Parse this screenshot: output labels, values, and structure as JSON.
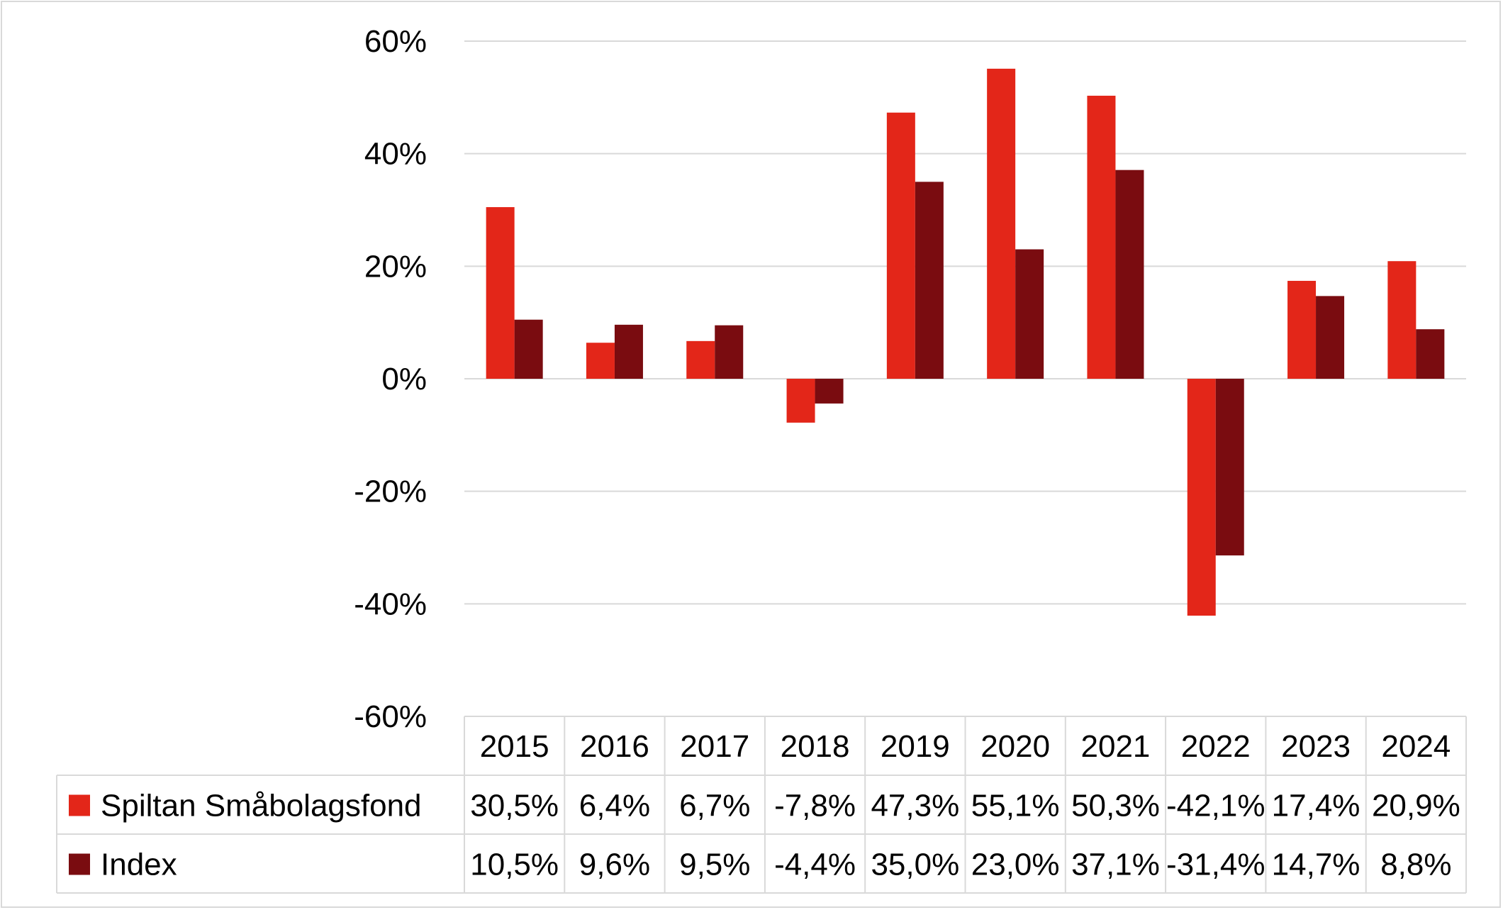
{
  "chart_data": {
    "type": "bar",
    "title": "",
    "xlabel": "",
    "ylabel": "",
    "categories": [
      "2015",
      "2016",
      "2017",
      "2018",
      "2019",
      "2020",
      "2021",
      "2022",
      "2023",
      "2024"
    ],
    "series": [
      {
        "name": "Spiltan Småbolagsfond",
        "color": "#e32619",
        "values": [
          30.5,
          6.4,
          6.7,
          -7.8,
          47.3,
          55.1,
          50.3,
          -42.1,
          17.4,
          20.9
        ],
        "labels": [
          "30,5%",
          "6,4%",
          "6,7%",
          "-7,8%",
          "47,3%",
          "55,1%",
          "50,3%",
          "-42,1%",
          "17,4%",
          "20,9%"
        ]
      },
      {
        "name": "Index",
        "color": "#7a0c10",
        "values": [
          10.5,
          9.6,
          9.5,
          -4.4,
          35.0,
          23.0,
          37.1,
          -31.4,
          14.7,
          8.8
        ],
        "labels": [
          "10,5%",
          "9,6%",
          "9,5%",
          "-4,4%",
          "35,0%",
          "23,0%",
          "37,1%",
          "-31,4%",
          "14,7%",
          "8,8%"
        ]
      }
    ],
    "ylim": [
      -60,
      60
    ],
    "yticks": [
      60,
      40,
      20,
      0,
      -20,
      -40,
      -60
    ],
    "ytick_labels": [
      "60%",
      "40%",
      "20%",
      "0%",
      "-20%",
      "-40%",
      "-60%"
    ],
    "grid": true,
    "legend": "data-table"
  }
}
